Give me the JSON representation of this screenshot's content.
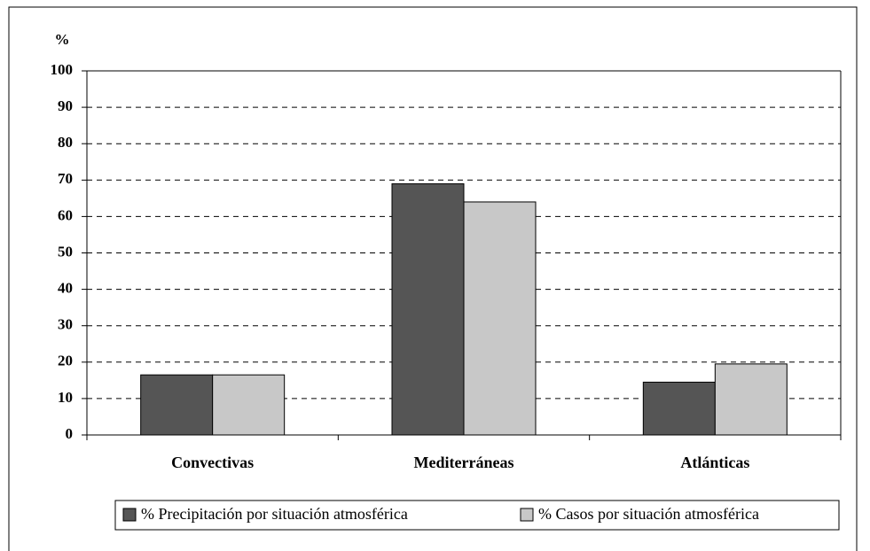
{
  "chart_data": {
    "type": "bar",
    "y_label": "%",
    "categories": [
      "Convectivas",
      "Mediterráneas",
      "Atlánticas"
    ],
    "series": [
      {
        "name": "%  Precipitación por situación atmosférica",
        "color": "#555555",
        "values": [
          16.5,
          69,
          14.5
        ]
      },
      {
        "name": "% Casos por situación atmosférica",
        "color": "#c8c8c8",
        "values": [
          16.5,
          64,
          19.5
        ]
      }
    ],
    "ylim": [
      0,
      100
    ],
    "yticks": [
      0,
      10,
      20,
      30,
      40,
      50,
      60,
      70,
      80,
      90,
      100
    ],
    "grid": true,
    "legend": "bottom"
  }
}
